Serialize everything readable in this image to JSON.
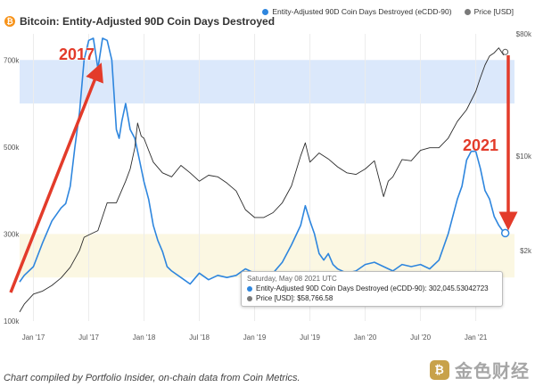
{
  "header": {
    "title": "Bitcoin: Entity-Adjusted 90D Coin Days Destroyed",
    "btc_symbol": "₿"
  },
  "legend": {
    "ecdd_label": "Entity-Adjusted 90D Coin Days Destroyed (eCDD-90)",
    "price_label": "Price [USD]"
  },
  "colors": {
    "ecdd": "#2e86de",
    "price": "#2b2b2b",
    "band_high": "#dbe8fb",
    "band_low": "#fbf7e2",
    "arrow": "#e33b2a",
    "grid": "#ececec"
  },
  "tooltip": {
    "date": "Saturday, May 08 2021 UTC",
    "ecdd_text": "Entity-Adjusted 90D Coin Days Destroyed (eCDD-90): 302,045.53042723",
    "price_text": "Price [USD]: $58,766.58"
  },
  "annotations": {
    "label_2017": "2017",
    "label_2021": "2021"
  },
  "caption": "Chart compiled by Portfolio Insider, on-chain data from Coin Metrics.",
  "watermark": {
    "logo": "₿",
    "text": "金色财经"
  },
  "chart_data": {
    "type": "line",
    "title": "Bitcoin: Entity-Adjusted 90D Coin Days Destroyed",
    "x_ticks": [
      "Jan '17",
      "Jul '17",
      "Jan '18",
      "Jul '18",
      "Jan '19",
      "Jul '19",
      "Jan '20",
      "Jul '20",
      "Jan '21"
    ],
    "x_tick_pos": [
      0,
      6,
      12,
      18,
      24,
      30,
      36,
      42,
      48
    ],
    "xlim": [
      -1.5,
      52.2
    ],
    "y_left": {
      "label": "eCDD-90",
      "ticks": [
        "700k",
        "500k",
        "300k",
        "100k"
      ],
      "tick_values": [
        700000,
        500000,
        300000,
        100000
      ],
      "range": [
        100000,
        760000
      ]
    },
    "y_right": {
      "label": "Price [USD]",
      "scale": "log",
      "ticks": [
        "$80k",
        "$10k",
        "$2k"
      ],
      "tick_values": [
        80000,
        10000,
        2000
      ],
      "range": [
        600,
        80000
      ]
    },
    "bands": [
      {
        "name": "high",
        "from": 600000,
        "to": 700000
      },
      {
        "name": "low",
        "from": 200000,
        "to": 300000
      }
    ],
    "series": [
      {
        "name": "Entity-Adjusted 90D Coin Days Destroyed (eCDD-90)",
        "axis": "left",
        "x": [
          -1.5,
          -1,
          0,
          1,
          2,
          3,
          3.5,
          4,
          4.5,
          5,
          5.5,
          6,
          6.5,
          7,
          7.5,
          8,
          8.5,
          9,
          9.3,
          9.6,
          10,
          10.5,
          11,
          11.5,
          12,
          12.5,
          13,
          13.5,
          14,
          14.5,
          15,
          16,
          17,
          18,
          19,
          20,
          21,
          22,
          23,
          24,
          25,
          26,
          27,
          28,
          29,
          29.5,
          30,
          30.5,
          31,
          31.5,
          32,
          32.5,
          33,
          34,
          35,
          36,
          37,
          38,
          39,
          40,
          41,
          42,
          43,
          44,
          45,
          46,
          46.5,
          47,
          47.5,
          48,
          48.5,
          49,
          49.5,
          50,
          50.5,
          51,
          51.2
        ],
        "values": [
          190000,
          205000,
          225000,
          280000,
          330000,
          360000,
          370000,
          410000,
          500000,
          580000,
          700000,
          745000,
          750000,
          680000,
          750000,
          745000,
          700000,
          540000,
          520000,
          560000,
          600000,
          540000,
          520000,
          470000,
          420000,
          380000,
          320000,
          285000,
          260000,
          225000,
          215000,
          200000,
          185000,
          210000,
          195000,
          205000,
          200000,
          205000,
          220000,
          210000,
          205000,
          210000,
          235000,
          275000,
          320000,
          365000,
          330000,
          300000,
          255000,
          240000,
          255000,
          230000,
          220000,
          210000,
          215000,
          230000,
          235000,
          225000,
          215000,
          230000,
          225000,
          230000,
          220000,
          240000,
          300000,
          380000,
          410000,
          470000,
          490000,
          490000,
          450000,
          400000,
          380000,
          340000,
          320000,
          305000,
          302045
        ]
      },
      {
        "name": "Price [USD]",
        "axis": "right",
        "x": [
          -1.5,
          -1,
          0,
          1,
          2,
          3,
          4,
          5,
          5.5,
          6,
          7,
          8,
          9,
          10,
          10.5,
          11,
          11.3,
          11.7,
          12,
          12.5,
          13,
          14,
          15,
          16,
          17,
          18,
          19,
          20,
          21,
          22,
          23,
          24,
          25,
          26,
          27,
          28,
          29,
          29.5,
          30,
          31,
          32,
          33,
          34,
          35,
          36,
          37,
          38,
          38.5,
          39,
          40,
          41,
          42,
          43,
          44,
          45,
          46,
          47,
          48,
          48.5,
          49,
          49.5,
          50,
          50.5,
          51,
          51.2
        ],
        "values": [
          700,
          800,
          950,
          1000,
          1100,
          1250,
          1500,
          2000,
          2500,
          2600,
          2800,
          4500,
          4500,
          6500,
          8000,
          11500,
          17500,
          14000,
          13500,
          11000,
          9000,
          7500,
          7000,
          8500,
          7500,
          6500,
          7200,
          7000,
          6300,
          5500,
          4000,
          3500,
          3500,
          3800,
          4500,
          6000,
          10000,
          12500,
          9000,
          10500,
          9500,
          8300,
          7500,
          7300,
          8000,
          9200,
          5000,
          6500,
          7000,
          9400,
          9200,
          11000,
          11500,
          11500,
          13500,
          18000,
          22000,
          30000,
          38000,
          47000,
          55000,
          58000,
          63000,
          56000,
          58766.58
        ]
      }
    ],
    "annotations": [
      "2017",
      "2021"
    ]
  }
}
